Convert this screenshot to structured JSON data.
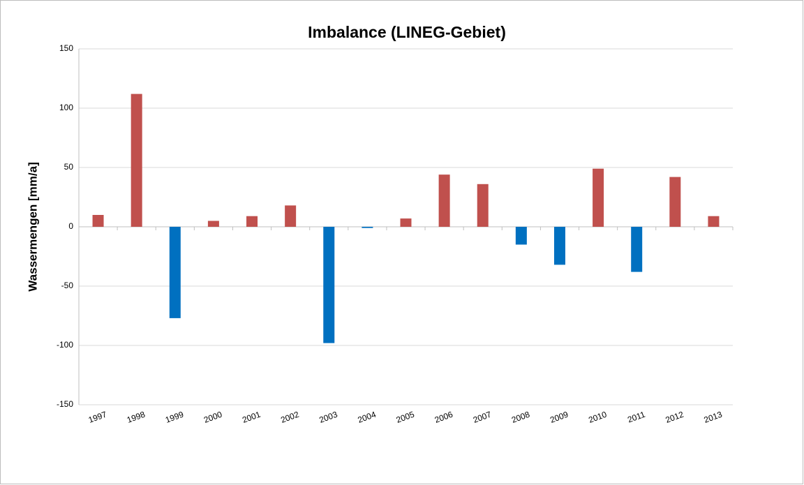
{
  "chart_data": {
    "type": "bar",
    "title": "Imbalance (LINEG-Gebiet)",
    "y_label": "Wassermengen [mm/a]",
    "categories": [
      "1997",
      "1998",
      "1999",
      "2000",
      "2001",
      "2002",
      "2003",
      "2004",
      "2005",
      "2006",
      "2007",
      "2008",
      "2009",
      "2010",
      "2011",
      "2012",
      "2013"
    ],
    "values": [
      10,
      112,
      -77,
      5,
      9,
      18,
      -98,
      -1,
      7,
      44,
      36,
      -15,
      -32,
      49,
      -38,
      42,
      9
    ],
    "color_positive": "#c0504d",
    "color_negative": "#0070c0",
    "ylim": [
      -150,
      150
    ],
    "yticks": [
      -150,
      -100,
      -50,
      0,
      50,
      100,
      150
    ],
    "grid": true
  }
}
